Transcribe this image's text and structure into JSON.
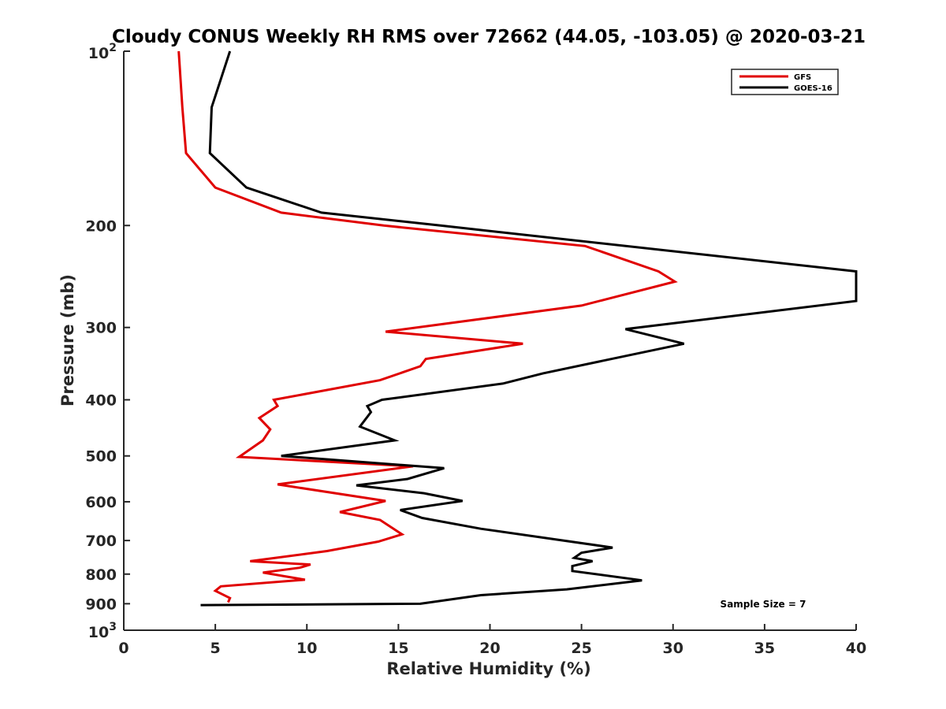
{
  "chart_data": {
    "type": "line",
    "title": "Cloudy CONUS Weekly RH RMS over 72662 (44.05, -103.05) @ 2020-03-21",
    "xlabel": "Relative Humidity (%)",
    "ylabel": "Pressure (mb)",
    "xlim": [
      0,
      40
    ],
    "ylim": [
      100,
      1000
    ],
    "y_scale": "log",
    "y_reversed": true,
    "x_ticks": [
      "0",
      "5",
      "10",
      "15",
      "20",
      "25",
      "30",
      "35",
      "40"
    ],
    "y_ticks": [
      {
        "value": 200,
        "label": "200"
      },
      {
        "value": 300,
        "label": "300"
      },
      {
        "value": 400,
        "label": "400"
      },
      {
        "value": 500,
        "label": "500"
      },
      {
        "value": 600,
        "label": "600"
      },
      {
        "value": 700,
        "label": "700"
      },
      {
        "value": 800,
        "label": "800"
      },
      {
        "value": 900,
        "label": "900"
      }
    ],
    "y_ends": [
      {
        "value": 100,
        "base": "10",
        "exp": "2"
      },
      {
        "value": 1000,
        "base": "10",
        "exp": "3"
      }
    ],
    "legend_position": "top-right",
    "grid": false,
    "annotation": "Sample Size = 7",
    "series": [
      {
        "name": "GFS",
        "color": "#e00000",
        "x": [
          3.0,
          3.2,
          3.4,
          5.0,
          8.6,
          14.2,
          25.2,
          29.2,
          30.1,
          25.0,
          14.3,
          21.8,
          16.5,
          16.2,
          14.0,
          8.2,
          8.4,
          7.4,
          8.0,
          7.6,
          6.3,
          15.8,
          8.4,
          14.3,
          11.8,
          14.0,
          15.2,
          13.9,
          11.1,
          6.9,
          10.2,
          9.6,
          7.6,
          9.9,
          5.3,
          5.0,
          5.8,
          5.7
        ],
        "y": [
          100,
          125,
          150,
          172,
          190,
          200,
          217,
          240,
          250,
          275,
          305,
          320,
          340,
          350,
          370,
          400,
          410,
          430,
          450,
          470,
          502,
          521,
          560,
          598,
          625,
          645,
          683,
          703,
          730,
          760,
          770,
          780,
          795,
          818,
          840,
          855,
          880,
          895
        ]
      },
      {
        "name": "GOES-16",
        "color": "#000000",
        "x": [
          5.8,
          4.8,
          4.7,
          6.7,
          10.8,
          17.3,
          40.0,
          40.0,
          27.4,
          30.6,
          22.9,
          20.7,
          14.1,
          13.3,
          13.5,
          12.9,
          14.8,
          8.6,
          17.5,
          15.5,
          12.7,
          16.4,
          18.5,
          15.1,
          16.3,
          19.5,
          24.0,
          26.7,
          25.0,
          24.6,
          25.6,
          24.5,
          24.5,
          28.3,
          24.2,
          19.5,
          16.2,
          4.2
        ],
        "y": [
          100,
          125,
          150,
          172,
          190,
          200,
          240,
          270,
          302,
          320,
          360,
          375,
          400,
          410,
          420,
          445,
          470,
          500,
          525,
          548,
          562,
          580,
          598,
          620,
          640,
          668,
          700,
          720,
          735,
          750,
          760,
          775,
          790,
          820,
          850,
          870,
          900,
          905
        ]
      }
    ]
  }
}
